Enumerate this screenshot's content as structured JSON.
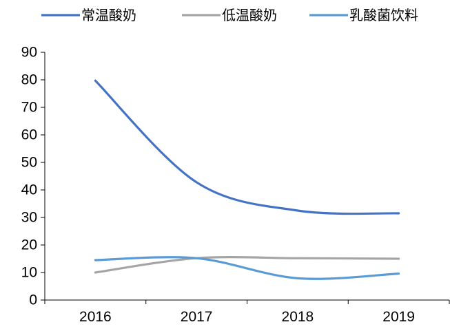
{
  "chart_data": {
    "type": "line",
    "categories": [
      "2016",
      "2017",
      "2018",
      "2019"
    ],
    "series": [
      {
        "name": "常温酸奶",
        "color": "#4472C4",
        "values": [
          79.7,
          42.8,
          32.5,
          31.5
        ]
      },
      {
        "name": "低温酸奶",
        "color": "#A5A5A5",
        "values": [
          10.0,
          15.2,
          15.2,
          15.0
        ]
      },
      {
        "name": "乳酸菌饮料",
        "color": "#5B9BD5",
        "values": [
          14.5,
          15.2,
          7.9,
          9.6
        ]
      }
    ],
    "ylim": [
      0,
      90
    ],
    "yticks": [
      0,
      10,
      20,
      30,
      40,
      50,
      60,
      70,
      80,
      90
    ],
    "grid": false,
    "legend_position": "top"
  }
}
